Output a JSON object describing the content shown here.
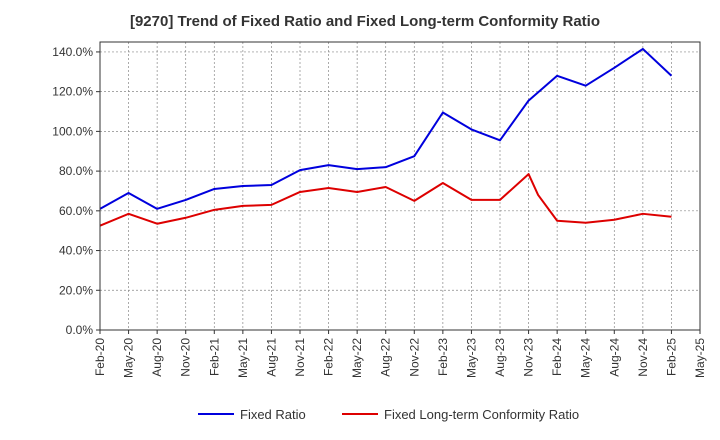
{
  "chart_data": {
    "type": "line",
    "title": "[9270]  Trend of Fixed Ratio and Fixed Long-term Conformity Ratio",
    "xlabel": "",
    "ylabel": "",
    "x_ticks": [
      "Feb-20",
      "May-20",
      "Aug-20",
      "Nov-20",
      "Feb-21",
      "May-21",
      "Aug-21",
      "Nov-21",
      "Feb-22",
      "May-22",
      "Aug-22",
      "Nov-22",
      "Feb-23",
      "May-23",
      "Aug-23",
      "Nov-23",
      "Feb-24",
      "May-24",
      "Aug-24",
      "Nov-24",
      "Feb-25",
      "May-25"
    ],
    "y_ticks": [
      "0.0%",
      "20.0%",
      "40.0%",
      "60.0%",
      "80.0%",
      "100.0%",
      "120.0%",
      "140.0%"
    ],
    "ylim": [
      0,
      145
    ],
    "grid": true,
    "legend_position": "bottom",
    "series": [
      {
        "name": "Fixed Ratio",
        "color": "#0000dd",
        "points": [
          {
            "x": "Feb-20",
            "y": 61.0
          },
          {
            "x": "May-20",
            "y": 69.0
          },
          {
            "x": "Aug-20",
            "y": 61.0
          },
          {
            "x": "Nov-20",
            "y": 65.5
          },
          {
            "x": "Feb-21",
            "y": 71.0
          },
          {
            "x": "May-21",
            "y": 72.5
          },
          {
            "x": "Aug-21",
            "y": 73.0
          },
          {
            "x": "Nov-21",
            "y": 80.5
          },
          {
            "x": "Feb-22",
            "y": 83.0
          },
          {
            "x": "May-22",
            "y": 81.0
          },
          {
            "x": "Aug-22",
            "y": 82.0
          },
          {
            "x": "Nov-22",
            "y": 87.5
          },
          {
            "x": "Feb-23",
            "y": 109.5
          },
          {
            "x": "May-23",
            "y": 101.0
          },
          {
            "x": "Aug-23",
            "y": 95.5
          },
          {
            "x": "Nov-23",
            "y": 115.5
          },
          {
            "x": "Feb-24",
            "y": 128.0
          },
          {
            "x": "May-24",
            "y": 123.0
          },
          {
            "x": "Aug-24",
            "y": 132.0
          },
          {
            "x": "Nov-24",
            "y": 141.5
          },
          {
            "x": "Feb-25",
            "y": 128.0
          }
        ]
      },
      {
        "name": "Fixed Long-term Conformity Ratio",
        "color": "#dd0000",
        "points": [
          {
            "x": "Feb-20",
            "y": 52.5
          },
          {
            "x": "May-20",
            "y": 58.5
          },
          {
            "x": "Aug-20",
            "y": 53.5
          },
          {
            "x": "Nov-20",
            "y": 56.5
          },
          {
            "x": "Feb-21",
            "y": 60.5
          },
          {
            "x": "May-21",
            "y": 62.5
          },
          {
            "x": "Aug-21",
            "y": 63.0
          },
          {
            "x": "Nov-21",
            "y": 69.5
          },
          {
            "x": "Feb-22",
            "y": 71.5
          },
          {
            "x": "May-22",
            "y": 69.5
          },
          {
            "x": "Aug-22",
            "y": 72.0
          },
          {
            "x": "Nov-22",
            "y": 65.0
          },
          {
            "x": "Feb-23",
            "y": 74.0
          },
          {
            "x": "May-23",
            "y": 65.5
          },
          {
            "x": "Aug-23",
            "y": 65.5
          },
          {
            "x": "Nov-23",
            "y": 78.5
          },
          {
            "x": "Dec-23",
            "y": 68.0
          },
          {
            "x": "Feb-24",
            "y": 55.0
          },
          {
            "x": "May-24",
            "y": 54.0
          },
          {
            "x": "Aug-24",
            "y": 55.5
          },
          {
            "x": "Nov-24",
            "y": 58.5
          },
          {
            "x": "Feb-25",
            "y": 57.0
          }
        ]
      }
    ]
  }
}
